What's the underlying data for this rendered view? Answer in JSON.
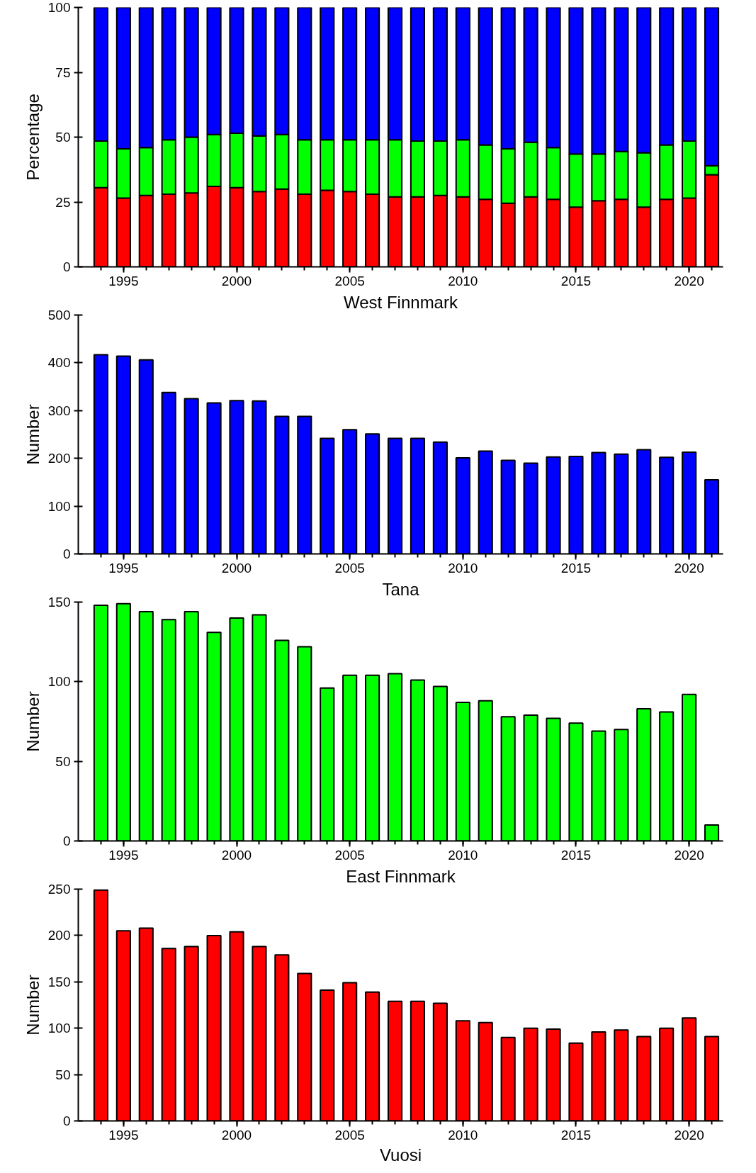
{
  "chart_data": [
    {
      "type": "bar",
      "stacked": true,
      "ylabel": "Percentage",
      "x": [
        1994,
        1995,
        1996,
        1997,
        1998,
        1999,
        2000,
        2001,
        2002,
        2003,
        2004,
        2005,
        2006,
        2007,
        2008,
        2009,
        2010,
        2011,
        2012,
        2013,
        2014,
        2015,
        2016,
        2017,
        2018,
        2019,
        2020,
        2021
      ],
      "series": [
        {
          "color": "#ff0000",
          "values": [
            30.5,
            26.5,
            27.5,
            28,
            28.5,
            31,
            30.5,
            29,
            30,
            28,
            29.5,
            29,
            28,
            27,
            27,
            27.5,
            27,
            26,
            24.5,
            27,
            26,
            23,
            25.5,
            26,
            23,
            26,
            26.5,
            35.5
          ]
        },
        {
          "color": "#00ff00",
          "values": [
            18,
            19,
            18.5,
            21,
            21.5,
            20,
            21,
            21.5,
            21,
            21,
            19.5,
            20,
            21,
            22,
            21.5,
            21,
            22,
            21,
            21,
            21,
            20,
            20.5,
            18,
            18.5,
            21,
            21,
            22,
            3.5
          ]
        },
        {
          "color": "#0000ff",
          "values": [
            51.5,
            54.5,
            54,
            51,
            50,
            49,
            48.5,
            49.5,
            49,
            51,
            51,
            51,
            51,
            51,
            51.5,
            51.5,
            51,
            53,
            54.5,
            52,
            54,
            56.5,
            56.5,
            55.5,
            56,
            53,
            51.5,
            61
          ]
        }
      ],
      "xlim": [
        1993,
        2021.5
      ],
      "xticks": [
        1995,
        2000,
        2005,
        2010,
        2015,
        2020
      ],
      "ylim": [
        0,
        100
      ],
      "yticks": [
        0,
        25,
        50,
        75,
        100
      ],
      "grid": false
    },
    {
      "type": "bar",
      "title": "West Finnmark",
      "ylabel": "Number",
      "x": [
        1994,
        1995,
        1996,
        1997,
        1998,
        1999,
        2000,
        2001,
        2002,
        2003,
        2004,
        2005,
        2006,
        2007,
        2008,
        2009,
        2010,
        2011,
        2012,
        2013,
        2014,
        2015,
        2016,
        2017,
        2018,
        2019,
        2020,
        2021
      ],
      "series": [
        {
          "color": "#0000ff",
          "values": [
            417,
            414,
            406,
            338,
            325,
            316,
            321,
            320,
            288,
            288,
            242,
            260,
            251,
            242,
            242,
            234,
            201,
            215,
            196,
            190,
            203,
            204,
            212,
            209,
            218,
            202,
            213,
            155
          ]
        }
      ],
      "xlim": [
        1993,
        2021.5
      ],
      "xticks": [
        1995,
        2000,
        2005,
        2010,
        2015,
        2020
      ],
      "ylim": [
        0,
        500
      ],
      "yticks": [
        0,
        100,
        200,
        300,
        400,
        500
      ],
      "grid": false
    },
    {
      "type": "bar",
      "title": "Tana",
      "ylabel": "Number",
      "x": [
        1994,
        1995,
        1996,
        1997,
        1998,
        1999,
        2000,
        2001,
        2002,
        2003,
        2004,
        2005,
        2006,
        2007,
        2008,
        2009,
        2010,
        2011,
        2012,
        2013,
        2014,
        2015,
        2016,
        2017,
        2018,
        2019,
        2020,
        2021
      ],
      "series": [
        {
          "color": "#00ff00",
          "values": [
            148,
            149,
            144,
            139,
            144,
            131,
            140,
            142,
            126,
            122,
            96,
            104,
            104,
            105,
            101,
            97,
            87,
            88,
            78,
            79,
            77,
            74,
            69,
            70,
            83,
            81,
            92,
            10
          ]
        }
      ],
      "xlim": [
        1993,
        2021.5
      ],
      "xticks": [
        1995,
        2000,
        2005,
        2010,
        2015,
        2020
      ],
      "ylim": [
        0,
        150
      ],
      "yticks": [
        0,
        50,
        100,
        150
      ],
      "grid": false
    },
    {
      "type": "bar",
      "title": "East Finnmark",
      "ylabel": "Number",
      "xlabel": "Vuosi",
      "x": [
        1994,
        1995,
        1996,
        1997,
        1998,
        1999,
        2000,
        2001,
        2002,
        2003,
        2004,
        2005,
        2006,
        2007,
        2008,
        2009,
        2010,
        2011,
        2012,
        2013,
        2014,
        2015,
        2016,
        2017,
        2018,
        2019,
        2020,
        2021
      ],
      "series": [
        {
          "color": "#ff0000",
          "values": [
            249,
            205,
            208,
            186,
            188,
            200,
            204,
            188,
            179,
            159,
            141,
            149,
            139,
            129,
            129,
            127,
            108,
            106,
            90,
            100,
            99,
            84,
            96,
            98,
            91,
            100,
            111,
            91
          ]
        }
      ],
      "xlim": [
        1993,
        2021.5
      ],
      "xticks": [
        1995,
        2000,
        2005,
        2010,
        2015,
        2020
      ],
      "ylim": [
        0,
        250
      ],
      "yticks": [
        0,
        50,
        100,
        150,
        200,
        250
      ],
      "grid": false
    }
  ]
}
